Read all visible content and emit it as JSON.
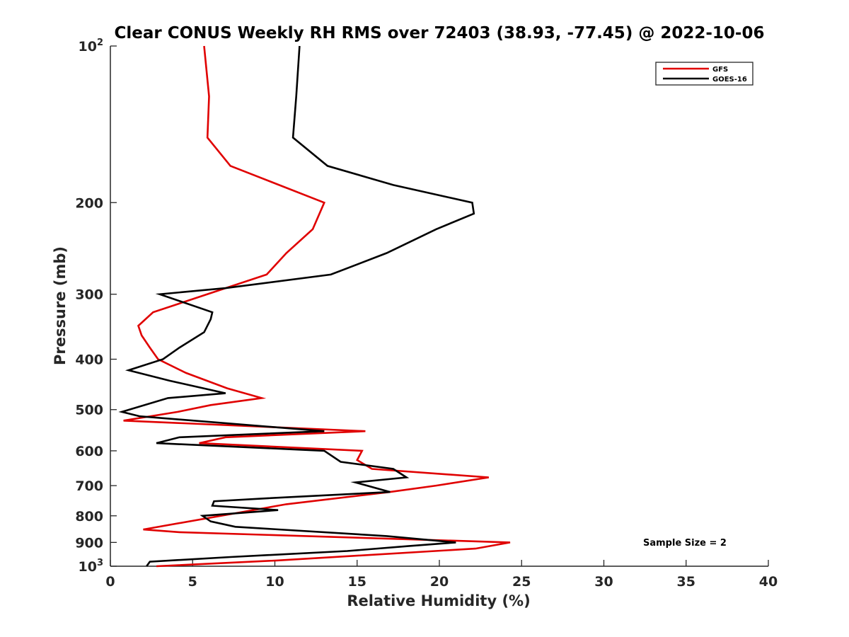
{
  "chart_data": {
    "type": "line",
    "title": "Clear CONUS Weekly RH RMS over 72403 (38.93, -77.45) @ 2022-10-06",
    "xlabel": "Relative Humidity (%)",
    "ylabel": "Pressure (mb)",
    "xlim": [
      0,
      40
    ],
    "ylim": [
      100,
      1000
    ],
    "y_scale": "log",
    "y_reversed": true,
    "grid": false,
    "legend_position": "top-right",
    "x_ticks": [
      0,
      5,
      10,
      15,
      20,
      25,
      30,
      35,
      40
    ],
    "y_ticks": [
      {
        "value": 100,
        "label": "10",
        "exp": "2"
      },
      {
        "value": 200,
        "label": "200"
      },
      {
        "value": 300,
        "label": "300"
      },
      {
        "value": 400,
        "label": "400"
      },
      {
        "value": 500,
        "label": "500"
      },
      {
        "value": 600,
        "label": "600"
      },
      {
        "value": 700,
        "label": "700"
      },
      {
        "value": 800,
        "label": "800"
      },
      {
        "value": 900,
        "label": "900"
      },
      {
        "value": 1000,
        "label": "10",
        "exp": "3"
      }
    ],
    "annotation": "Sample Size = 2",
    "series": [
      {
        "name": "GFS",
        "color": "#e00000",
        "points": [
          [
            5.7,
            100
          ],
          [
            6.0,
            125
          ],
          [
            5.9,
            150
          ],
          [
            7.3,
            170
          ],
          [
            13.0,
            200
          ],
          [
            12.3,
            225
          ],
          [
            10.7,
            250
          ],
          [
            9.5,
            275
          ],
          [
            7.0,
            292
          ],
          [
            2.6,
            325
          ],
          [
            1.7,
            345
          ],
          [
            1.9,
            360
          ],
          [
            2.4,
            380
          ],
          [
            2.9,
            400
          ],
          [
            4.6,
            425
          ],
          [
            7.1,
            455
          ],
          [
            9.2,
            475
          ],
          [
            6.1,
            490
          ],
          [
            4.1,
            505
          ],
          [
            0.8,
            525
          ],
          [
            15.5,
            550
          ],
          [
            7.0,
            565
          ],
          [
            5.4,
            580
          ],
          [
            15.3,
            600
          ],
          [
            15.0,
            625
          ],
          [
            15.9,
            650
          ],
          [
            23.0,
            675
          ],
          [
            19.8,
            700
          ],
          [
            17.0,
            720
          ],
          [
            10.7,
            760
          ],
          [
            2.0,
            850
          ],
          [
            4.2,
            860
          ],
          [
            24.3,
            900
          ],
          [
            22.2,
            925
          ],
          [
            10.1,
            975
          ],
          [
            2.8,
            1000
          ]
        ]
      },
      {
        "name": "GOES-16",
        "color": "#000000",
        "points": [
          [
            11.5,
            100
          ],
          [
            11.3,
            125
          ],
          [
            11.1,
            150
          ],
          [
            13.2,
            170
          ],
          [
            17.2,
            185
          ],
          [
            22.0,
            200
          ],
          [
            22.1,
            210
          ],
          [
            19.8,
            225
          ],
          [
            16.8,
            250
          ],
          [
            13.4,
            275
          ],
          [
            7.0,
            292
          ],
          [
            3.0,
            300
          ],
          [
            6.2,
            325
          ],
          [
            6.1,
            335
          ],
          [
            5.7,
            355
          ],
          [
            4.2,
            380
          ],
          [
            3.2,
            400
          ],
          [
            1.1,
            420
          ],
          [
            3.6,
            440
          ],
          [
            7.0,
            465
          ],
          [
            3.5,
            475
          ],
          [
            0.7,
            505
          ],
          [
            1.8,
            515
          ],
          [
            13.0,
            550
          ],
          [
            4.2,
            565
          ],
          [
            2.8,
            580
          ],
          [
            13.0,
            600
          ],
          [
            14.0,
            630
          ],
          [
            17.2,
            650
          ],
          [
            18.0,
            675
          ],
          [
            14.9,
            690
          ],
          [
            17.0,
            720
          ],
          [
            9.6,
            740
          ],
          [
            6.3,
            750
          ],
          [
            6.2,
            765
          ],
          [
            10.2,
            780
          ],
          [
            5.6,
            800
          ],
          [
            6.1,
            820
          ],
          [
            7.6,
            840
          ],
          [
            16.8,
            875
          ],
          [
            21.0,
            900
          ],
          [
            18.1,
            915
          ],
          [
            14.4,
            935
          ],
          [
            7.3,
            960
          ],
          [
            2.4,
            980
          ],
          [
            2.2,
            1000
          ]
        ]
      }
    ]
  }
}
